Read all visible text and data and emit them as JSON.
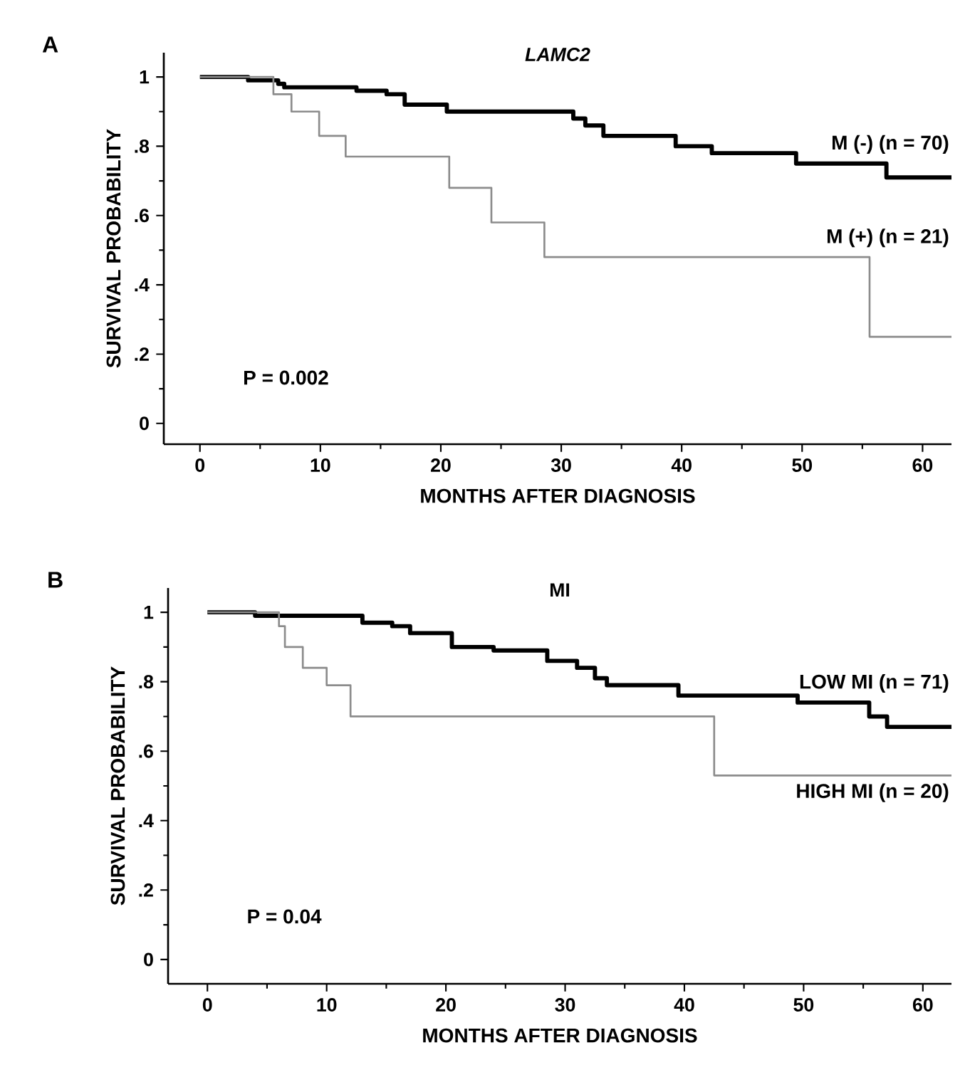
{
  "chart_data": [
    {
      "type": "step",
      "title": "LAMC2",
      "xlabel": "MONTHS AFTER DIAGNOSIS",
      "ylabel": "SURVIVAL PROBABILITY",
      "xlim": [
        -3,
        62.4
      ],
      "ylim": [
        -0.06,
        1.07
      ],
      "xticks": [
        0,
        10,
        20,
        30,
        40,
        50,
        60
      ],
      "yticks": [
        {
          "value": 0,
          "label": "0"
        },
        {
          "value": 0.2,
          "label": ".2"
        },
        {
          "value": 0.4,
          "label": ".4"
        },
        {
          "value": 0.6,
          "label": ".6"
        },
        {
          "value": 0.8,
          "label": ".8"
        },
        {
          "value": 1,
          "label": "1"
        }
      ],
      "series": [
        {
          "name": "M (-) (n = 70)",
          "color": "#000000",
          "x": [
            0,
            4,
            6.5,
            7,
            13,
            15.5,
            17,
            20.5,
            31,
            32,
            33.5,
            39.5,
            42.5,
            49.5,
            57,
            62.4
          ],
          "values": [
            1,
            0.99,
            0.98,
            0.97,
            0.96,
            0.95,
            0.92,
            0.9,
            0.88,
            0.86,
            0.83,
            0.8,
            0.78,
            0.75,
            0.71,
            0.71
          ]
        },
        {
          "name": "M (+) (n = 21)",
          "color": "#8c8c8c",
          "x": [
            0,
            6.1,
            7.6,
            9.9,
            12.1,
            20.7,
            24.2,
            28.6,
            55.6,
            62.4
          ],
          "values": [
            1,
            0.95,
            0.9,
            0.83,
            0.77,
            0.68,
            0.58,
            0.48,
            0.25,
            0.25
          ]
        }
      ],
      "annotations": [
        "A",
        "P = 0.002"
      ]
    },
    {
      "type": "step",
      "title": "MI",
      "xlabel": "MONTHS AFTER DIAGNOSIS",
      "ylabel": "SURVIVAL PROBABILITY",
      "xlim": [
        -3.3,
        62.4
      ],
      "ylim": [
        -0.07,
        1.07
      ],
      "xticks": [
        0,
        10,
        20,
        30,
        40,
        50,
        60
      ],
      "yticks": [
        {
          "value": 0,
          "label": "0"
        },
        {
          "value": 0.2,
          "label": ".2"
        },
        {
          "value": 0.4,
          "label": ".4"
        },
        {
          "value": 0.6,
          "label": ".6"
        },
        {
          "value": 0.8,
          "label": ".8"
        },
        {
          "value": 1,
          "label": "1"
        }
      ],
      "series": [
        {
          "name": "LOW MI (n = 71)",
          "color": "#000000",
          "x": [
            0,
            4,
            13,
            15.5,
            17,
            20.5,
            24,
            28.5,
            31,
            32.5,
            33.5,
            39.5,
            49.5,
            55.5,
            57,
            62.4
          ],
          "values": [
            1,
            0.99,
            0.97,
            0.96,
            0.94,
            0.9,
            0.89,
            0.86,
            0.84,
            0.81,
            0.79,
            0.76,
            0.74,
            0.7,
            0.67,
            0.67
          ]
        },
        {
          "name": "HIGH MI (n = 20)",
          "color": "#8c8c8c",
          "x": [
            0,
            6,
            6.5,
            8,
            10,
            12,
            42.5,
            62.4
          ],
          "values": [
            1,
            0.96,
            0.9,
            0.84,
            0.79,
            0.7,
            0.53,
            0.53
          ]
        }
      ],
      "annotations": [
        "B",
        "P = 0.04"
      ]
    }
  ]
}
